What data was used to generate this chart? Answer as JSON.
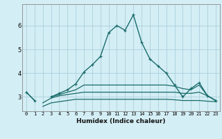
{
  "xlabel": "Humidex (Indice chaleur)",
  "bg_color": "#d4eef5",
  "grid_color": "#aad0db",
  "line_color": "#1a6b6b",
  "x": [
    0,
    1,
    2,
    3,
    4,
    5,
    6,
    7,
    8,
    9,
    10,
    11,
    12,
    13,
    14,
    15,
    16,
    17,
    18,
    19,
    20,
    21,
    22,
    23
  ],
  "line_main": [
    3.2,
    2.85,
    null,
    3.0,
    3.15,
    3.3,
    3.55,
    4.05,
    4.35,
    4.7,
    5.7,
    6.0,
    5.8,
    6.45,
    5.3,
    4.6,
    4.3,
    4.0,
    3.5,
    3.0,
    3.35,
    3.6,
    3.05,
    2.85
  ],
  "line_upper": [
    3.2,
    2.85,
    null,
    3.0,
    3.1,
    3.2,
    3.3,
    3.5,
    3.5,
    3.5,
    3.5,
    3.5,
    3.5,
    3.5,
    3.5,
    3.5,
    3.5,
    3.5,
    3.45,
    3.35,
    3.3,
    3.5,
    3.05,
    2.85
  ],
  "line_mid": [
    null,
    null,
    2.75,
    2.95,
    3.05,
    3.1,
    3.15,
    3.2,
    3.2,
    3.2,
    3.2,
    3.2,
    3.2,
    3.2,
    3.2,
    3.2,
    3.2,
    3.2,
    3.2,
    3.15,
    3.15,
    3.2,
    3.05,
    2.85
  ],
  "line_lower": [
    null,
    null,
    2.6,
    2.75,
    2.8,
    2.85,
    2.9,
    2.9,
    2.9,
    2.9,
    2.9,
    2.9,
    2.9,
    2.9,
    2.9,
    2.9,
    2.9,
    2.9,
    2.88,
    2.85,
    2.85,
    2.85,
    2.82,
    2.8
  ],
  "ylim": [
    2.4,
    6.9
  ],
  "yticks": [
    3,
    4,
    5,
    6
  ],
  "xlim": [
    -0.5,
    23.5
  ]
}
